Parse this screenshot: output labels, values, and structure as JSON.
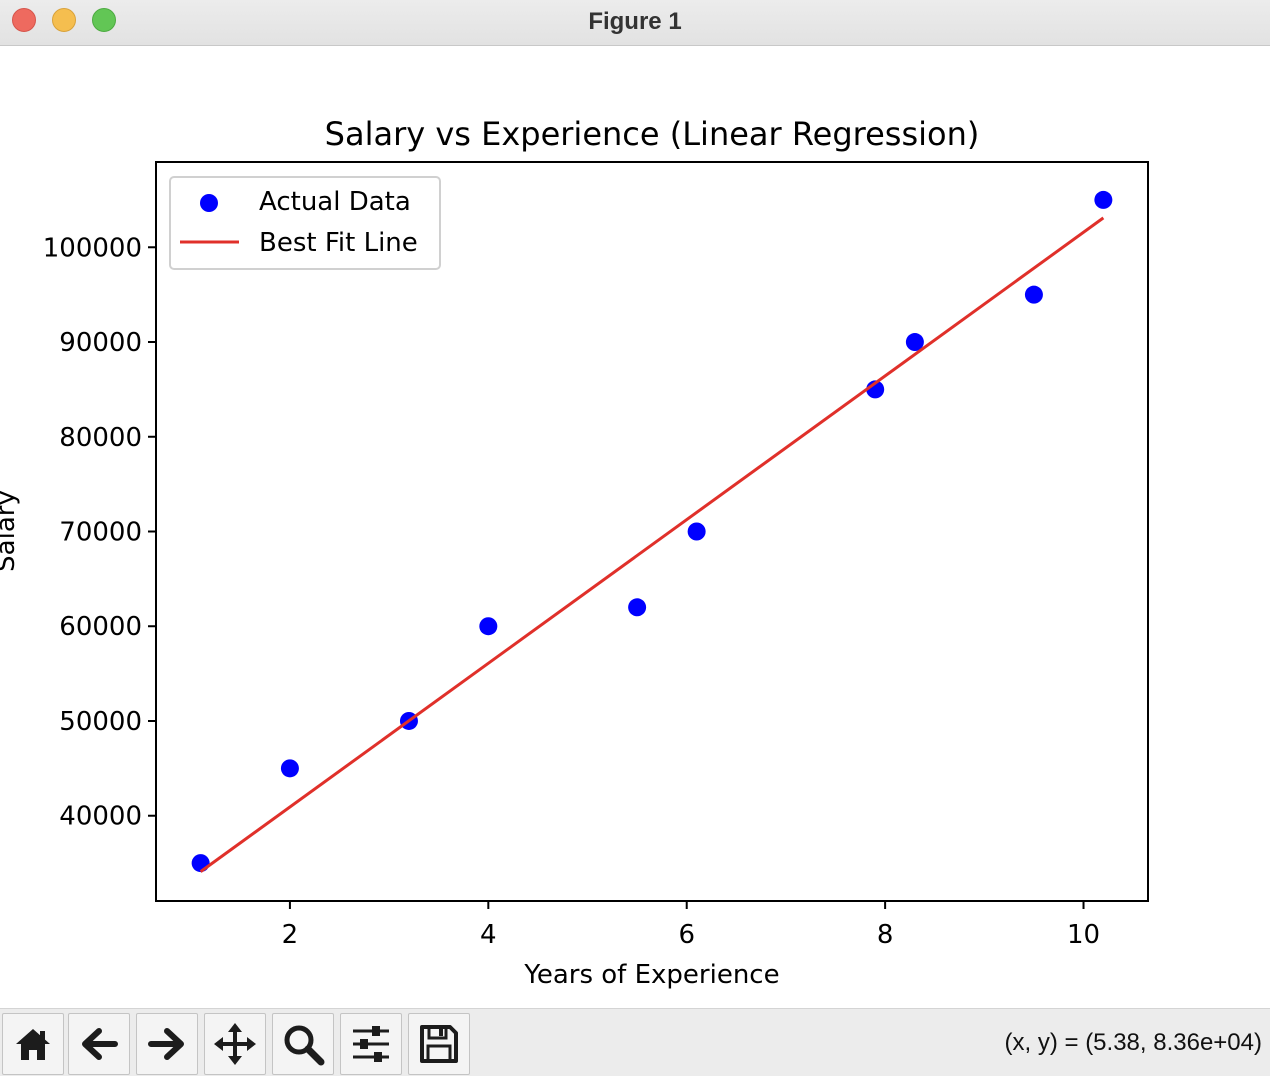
{
  "window": {
    "title": "Figure 1"
  },
  "toolbar": {
    "buttons": [
      {
        "name": "home-button",
        "icon": "home-icon"
      },
      {
        "name": "back-button",
        "icon": "arrow-left-icon"
      },
      {
        "name": "forward-button",
        "icon": "arrow-right-icon"
      },
      {
        "name": "pan-button",
        "icon": "move-icon"
      },
      {
        "name": "zoom-button",
        "icon": "magnifier-icon"
      },
      {
        "name": "configure-subplots-button",
        "icon": "sliders-icon"
      },
      {
        "name": "save-button",
        "icon": "floppy-disk-icon"
      }
    ],
    "coords_text": "(x, y) = (5.38, 8.36e+04)"
  },
  "chart_data": {
    "type": "scatter",
    "title": "Salary vs Experience (Linear Regression)",
    "xlabel": "Years of Experience",
    "ylabel": "Salary",
    "xlim": [
      0.65,
      10.65
    ],
    "ylim": [
      31000,
      109000
    ],
    "xticks": [
      2,
      4,
      6,
      8,
      10
    ],
    "yticks": [
      40000,
      50000,
      60000,
      70000,
      80000,
      90000,
      100000
    ],
    "grid": false,
    "legend": {
      "placement": "upper-left",
      "entries": [
        "Actual Data",
        "Best Fit Line"
      ]
    },
    "series": [
      {
        "name": "Actual Data",
        "kind": "scatter",
        "color": "#0000ff",
        "x": [
          1.1,
          2.0,
          3.2,
          4.0,
          5.5,
          6.1,
          7.9,
          8.3,
          9.5,
          10.2
        ],
        "y": [
          35000,
          45000,
          50000,
          60000,
          62000,
          70000,
          85000,
          90000,
          95000,
          105000
        ]
      },
      {
        "name": "Best Fit Line",
        "kind": "line",
        "color": "#e0302a",
        "x": [
          1.1,
          10.2
        ],
        "y": [
          34100,
          103100
        ]
      }
    ]
  }
}
